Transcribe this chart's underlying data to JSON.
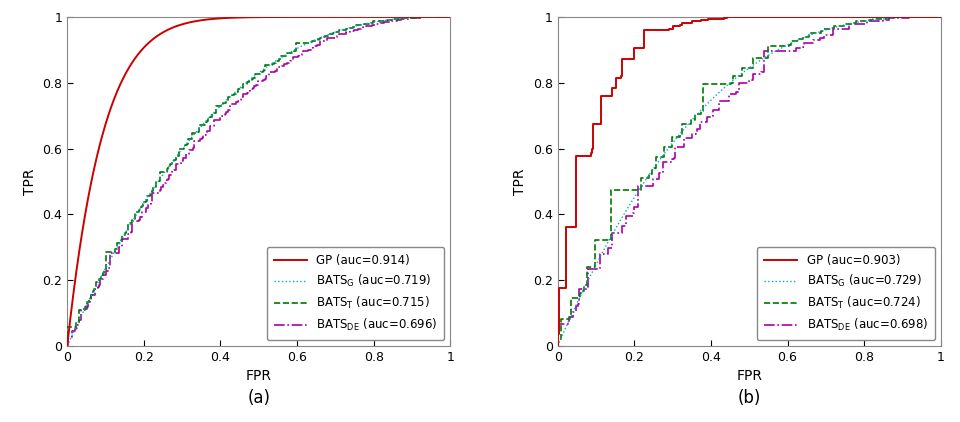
{
  "subplots": [
    {
      "label": "(a)",
      "gp_auc": 0.914,
      "bats_g_auc": 0.719,
      "bats_t_auc": 0.715,
      "bats_de_auc": 0.696,
      "gp_smooth": true
    },
    {
      "label": "(b)",
      "gp_auc": 0.903,
      "bats_g_auc": 0.729,
      "bats_t_auc": 0.724,
      "bats_de_auc": 0.698,
      "gp_smooth": false
    }
  ],
  "gp_color": "#cc0000",
  "bats_g_color": "#00aacc",
  "bats_t_color": "#007700",
  "bats_de_color": "#aa00aa",
  "xlabel": "FPR",
  "ylabel": "TPR",
  "xlim": [
    0,
    1
  ],
  "ylim": [
    0,
    1
  ],
  "xticks": [
    0,
    0.2,
    0.4,
    0.6,
    0.8,
    1
  ],
  "yticks": [
    0,
    0.2,
    0.4,
    0.6,
    0.8,
    1
  ],
  "xtick_labels": [
    "0",
    "0.2",
    "0.4",
    "0.6",
    "0.8",
    "1"
  ],
  "ytick_labels": [
    "0",
    "0.2",
    "0.4",
    "0.6",
    "0.8",
    "1"
  ],
  "figsize": [
    9.6,
    4.22
  ],
  "dpi": 100
}
